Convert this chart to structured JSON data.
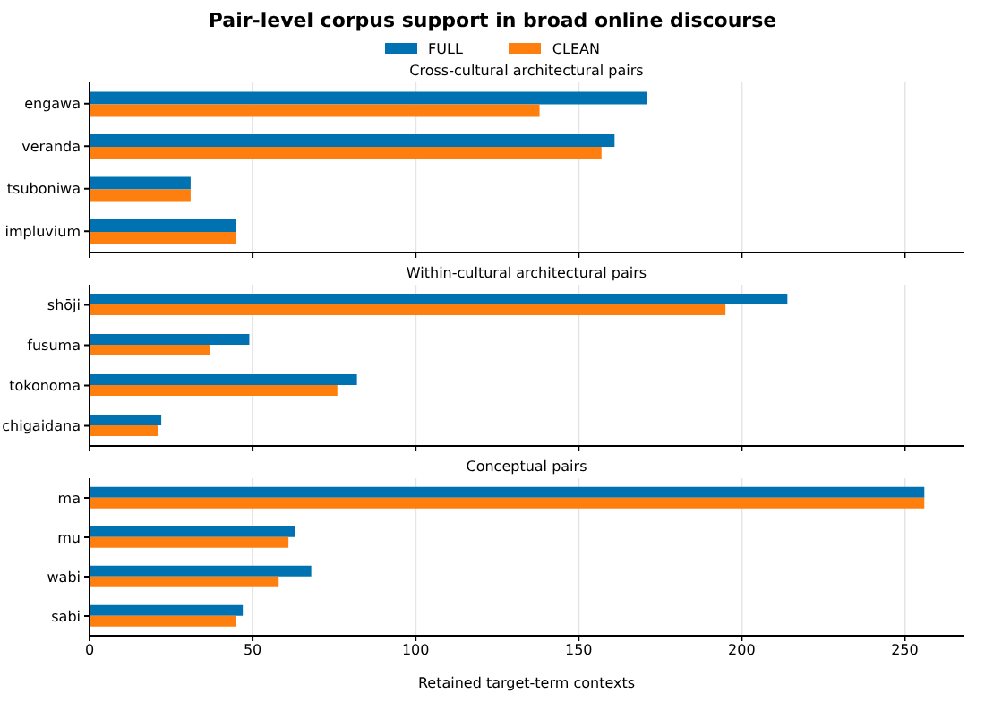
{
  "chart_data": [
    {
      "type": "bar",
      "orientation": "horizontal",
      "title": "Pair-level corpus support in broad online discourse",
      "subtitle": "Cross-cultural architectural pairs",
      "categories": [
        "engawa",
        "veranda",
        "tsuboniwa",
        "impluvium"
      ],
      "series": [
        {
          "name": "FULL",
          "color": "#0072b2",
          "values": [
            171,
            161,
            31,
            45
          ]
        },
        {
          "name": "CLEAN",
          "color": "#ff7f0e",
          "values": [
            138,
            157,
            31,
            45
          ]
        }
      ],
      "xlim": [
        0,
        268
      ],
      "xticks": [
        0,
        50,
        100,
        150,
        200,
        250
      ],
      "grid": "x",
      "legend": "top",
      "tick_labels": "y"
    },
    {
      "type": "bar",
      "orientation": "horizontal",
      "subtitle": "Within-cultural architectural pairs",
      "categories": [
        "shōji",
        "fusuma",
        "tokonoma",
        "chigaidana"
      ],
      "series": [
        {
          "color": "#0072b2",
          "values": [
            214,
            49,
            82,
            22
          ]
        },
        {
          "color": "#ff7f0e",
          "values": [
            195,
            37,
            76,
            21
          ]
        }
      ],
      "xlim": [
        0,
        268
      ],
      "xticks": [
        0,
        50,
        100,
        150,
        200,
        250
      ],
      "grid": "x",
      "tick_labels": "y"
    },
    {
      "type": "bar",
      "orientation": "horizontal",
      "subtitle": "Conceptual pairs",
      "xlabel": "Retained target-term contexts",
      "categories": [
        "ma",
        "mu",
        "wabi",
        "sabi"
      ],
      "series": [
        {
          "color": "#0072b2",
          "values": [
            256,
            63,
            68,
            47
          ]
        },
        {
          "color": "#ff7f0e",
          "values": [
            256,
            61,
            58,
            45
          ]
        }
      ],
      "xlim": [
        0,
        268
      ],
      "xticks": [
        0,
        50,
        100,
        150,
        200,
        250
      ],
      "grid": "x"
    }
  ]
}
